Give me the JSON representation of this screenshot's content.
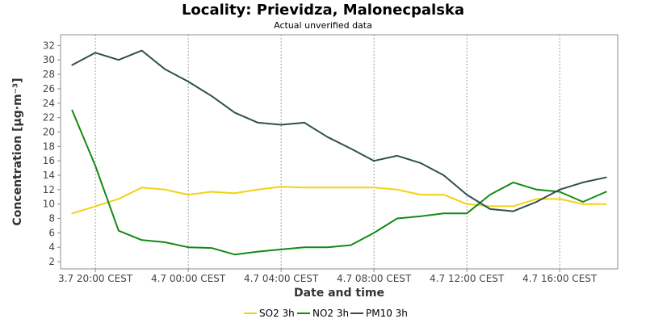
{
  "chart_data": {
    "type": "line",
    "title": "Locality: Prievidza, Malonecpalska",
    "subtitle": "Actual unverified data",
    "xlabel": "Date and time",
    "ylabel": "Concentration [µg·m⁻³]",
    "ylim": [
      2,
      33
    ],
    "yticks": [
      2,
      4,
      6,
      8,
      10,
      12,
      14,
      16,
      18,
      20,
      22,
      24,
      26,
      28,
      30,
      32
    ],
    "xlim": [
      -1,
      23
    ],
    "xticks": [
      {
        "at": 0,
        "label": "3.7 20:00 CEST"
      },
      {
        "at": 4,
        "label": "4.7 00:00 CEST"
      },
      {
        "at": 8,
        "label": "4.7 04:00 CEST"
      },
      {
        "at": 12,
        "label": "4.7 08:00 CEST"
      },
      {
        "at": 16,
        "label": "4.7 12:00 CEST"
      },
      {
        "at": 20,
        "label": "4.7 16:00 CEST"
      }
    ],
    "grid": true,
    "legend_position": "bottom",
    "x": [
      -1,
      0,
      1,
      2,
      3,
      4,
      5,
      6,
      7,
      8,
      9,
      10,
      11,
      12,
      13,
      14,
      15,
      16,
      17,
      18,
      19,
      20,
      21,
      22
    ],
    "series": [
      {
        "name": "SO2 3h",
        "color": "#f2d213",
        "values": [
          8.7,
          9.7,
          10.7,
          12.3,
          12.0,
          11.3,
          11.7,
          11.5,
          12.0,
          12.4,
          12.3,
          12.3,
          12.3,
          12.3,
          12.0,
          11.3,
          11.3,
          10.0,
          9.7,
          9.7,
          10.7,
          10.7,
          10.0,
          10.0
        ]
      },
      {
        "name": "NO2 3h",
        "color": "#138a13",
        "values": [
          23.0,
          15.3,
          6.3,
          5.0,
          4.7,
          4.0,
          3.9,
          3.0,
          3.4,
          3.7,
          4.0,
          4.0,
          4.3,
          6.0,
          8.0,
          8.3,
          8.7,
          8.7,
          11.3,
          13.0,
          12.0,
          11.7,
          10.3,
          11.7
        ]
      },
      {
        "name": "PM10 3h",
        "color": "#2f4f4f",
        "values": [
          29.3,
          31.0,
          30.0,
          31.3,
          28.7,
          27.0,
          25.0,
          22.7,
          21.3,
          21.0,
          21.3,
          19.3,
          17.7,
          16.0,
          16.7,
          15.7,
          14.0,
          11.3,
          9.3,
          9.0,
          10.3,
          12.0,
          13.0,
          13.7
        ]
      }
    ]
  }
}
